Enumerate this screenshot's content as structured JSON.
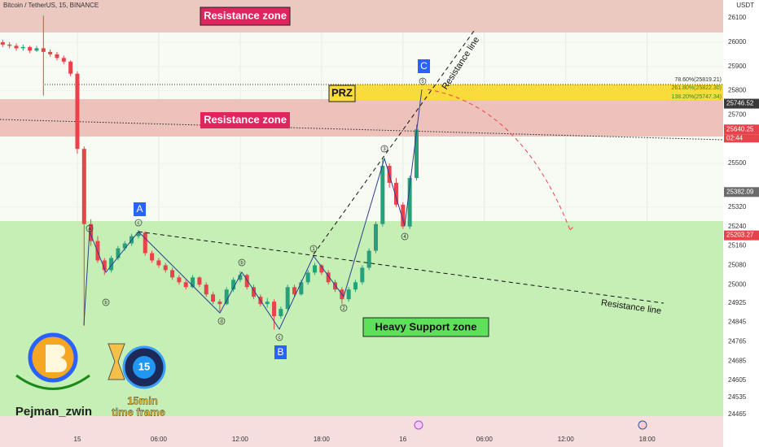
{
  "chart_data": {
    "type": "candlestick",
    "title": "Bitcoin / TetherUS, 15, BINANCE",
    "currency": "USDT",
    "up_color": "#26a17b",
    "down_color": "#e8434b",
    "xlim": [
      -5.7,
      47.6
    ],
    "xticks": [
      {
        "value": 0,
        "label": "15"
      },
      {
        "value": 6,
        "label": "06:00"
      },
      {
        "value": 12,
        "label": "12:00"
      },
      {
        "value": 18,
        "label": "18:00"
      },
      {
        "value": 24,
        "label": "16"
      },
      {
        "value": 30,
        "label": "06:00"
      },
      {
        "value": 36,
        "label": "12:00"
      },
      {
        "value": 42,
        "label": "18:00"
      }
    ],
    "ylim": [
      24458,
      26174
    ],
    "yticks": [
      26100,
      26000,
      25900,
      25800,
      25700,
      25500,
      25320,
      25240,
      25160,
      25080,
      25000,
      24925,
      24845,
      24765,
      24685,
      24605,
      24535,
      24465
    ],
    "grid": true,
    "candles": [
      [
        -5.5,
        26000,
        26010,
        25980,
        25990
      ],
      [
        -5,
        25990,
        26000,
        25975,
        25985
      ],
      [
        -4.5,
        25985,
        25995,
        25965,
        25975
      ],
      [
        -4,
        25975,
        25990,
        25965,
        25980
      ],
      [
        -3.5,
        25980,
        25985,
        25955,
        25965
      ],
      [
        -3,
        25965,
        25985,
        25960,
        25975
      ],
      [
        -2.5,
        25975,
        26110,
        25780,
        25960
      ],
      [
        -2,
        25960,
        25970,
        25940,
        25950
      ],
      [
        -1.5,
        25950,
        25960,
        25925,
        25935
      ],
      [
        -1,
        25935,
        25945,
        25910,
        25920
      ],
      [
        -0.5,
        25920,
        25925,
        25860,
        25870
      ],
      [
        0,
        25870,
        25880,
        25540,
        25560
      ],
      [
        0.5,
        25560,
        25570,
        24830,
        25250
      ],
      [
        1,
        25250,
        25270,
        25160,
        25180
      ],
      [
        1.5,
        25180,
        25200,
        25090,
        25100
      ],
      [
        2,
        25100,
        25110,
        25040,
        25060
      ],
      [
        2.5,
        25060,
        25120,
        25050,
        25110
      ],
      [
        3,
        25110,
        25160,
        25100,
        25150
      ],
      [
        3.5,
        25150,
        25180,
        25140,
        25170
      ],
      [
        4,
        25170,
        25210,
        25160,
        25200
      ],
      [
        4.5,
        25200,
        25225,
        25190,
        25215
      ],
      [
        5,
        25215,
        25220,
        25120,
        25130
      ],
      [
        5.5,
        25130,
        25140,
        25090,
        25100
      ],
      [
        6,
        25100,
        25110,
        25070,
        25080
      ],
      [
        6.5,
        25080,
        25090,
        25050,
        25060
      ],
      [
        7,
        25060,
        25070,
        25020,
        25030
      ],
      [
        7.5,
        25030,
        25040,
        25000,
        25010
      ],
      [
        8,
        25010,
        25020,
        24980,
        24990
      ],
      [
        8.5,
        24990,
        25040,
        24985,
        25030
      ],
      [
        9,
        25030,
        25035,
        24990,
        25000
      ],
      [
        9.5,
        25000,
        25010,
        24950,
        24960
      ],
      [
        10,
        24960,
        24970,
        24920,
        24930
      ],
      [
        10.5,
        24930,
        24940,
        24890,
        24920
      ],
      [
        11,
        24920,
        24990,
        24915,
        24980
      ],
      [
        11.5,
        24980,
        25030,
        24970,
        25020
      ],
      [
        12,
        25020,
        25055,
        25010,
        25040
      ],
      [
        12.5,
        25040,
        25045,
        24980,
        24990
      ],
      [
        13,
        24990,
        25000,
        24940,
        24950
      ],
      [
        13.5,
        24950,
        24960,
        24910,
        24920
      ],
      [
        14,
        24920,
        24945,
        24905,
        24930
      ],
      [
        14.5,
        24930,
        24940,
        24815,
        24870
      ],
      [
        15,
        24870,
        24910,
        24860,
        24900
      ],
      [
        15.5,
        24900,
        25000,
        24890,
        24990
      ],
      [
        16,
        24990,
        25000,
        24950,
        24960
      ],
      [
        16.5,
        24960,
        25020,
        24955,
        25010
      ],
      [
        17,
        25010,
        25060,
        25000,
        25050
      ],
      [
        17.5,
        25050,
        25090,
        25040,
        25080
      ],
      [
        18,
        25080,
        25085,
        25040,
        25050
      ],
      [
        18.5,
        25050,
        25060,
        25000,
        25010
      ],
      [
        19,
        25010,
        25020,
        24970,
        24980
      ],
      [
        19.5,
        24980,
        24990,
        24920,
        24940
      ],
      [
        20,
        24940,
        24990,
        24930,
        24980
      ],
      [
        20.5,
        24980,
        25020,
        24970,
        25010
      ],
      [
        21,
        25010,
        25080,
        25000,
        25070
      ],
      [
        21.5,
        25070,
        25150,
        25060,
        25140
      ],
      [
        22,
        25140,
        25260,
        25130,
        25250
      ],
      [
        22.5,
        25250,
        25520,
        25240,
        25490
      ],
      [
        23,
        25490,
        25500,
        25400,
        25420
      ],
      [
        23.5,
        25420,
        25440,
        25320,
        25330
      ],
      [
        24,
        25330,
        25340,
        25230,
        25240
      ],
      [
        24.5,
        25240,
        25450,
        25230,
        25440
      ],
      [
        25,
        25440,
        25660,
        25430,
        25640
      ]
    ],
    "price_labels": [
      {
        "value": 25746.52,
        "color": "#3a3a3a"
      },
      {
        "value": 25640.25,
        "color": "#e8434b"
      },
      {
        "value": 25382.09,
        "color": "#6b6b6b"
      },
      {
        "value": 25203.27,
        "color": "#e8434b"
      }
    ],
    "countdown": "02:44",
    "annotations": {
      "resistance_top": "Resistance zone",
      "resistance_mid": "Resistance zone",
      "prz": "PRZ",
      "support": "Heavy Support zone",
      "res_line_1": "Resistance line",
      "res_line_2": "Resistance line",
      "wave_A": "A",
      "wave_B": "B",
      "wave_C": "C",
      "fib_1": "78.60%(25819.21)",
      "fib_2": "261.80%(25822.30)",
      "fib_3": "138.20%(25747.34)",
      "sub_waves": [
        "a",
        "b",
        "c",
        "d",
        "b",
        "c",
        "1",
        "2",
        "3",
        "4",
        "5"
      ]
    },
    "branding": {
      "author": "Pejman_zwin",
      "clock": "15",
      "line1": "15min",
      "line2": "time frame"
    }
  }
}
